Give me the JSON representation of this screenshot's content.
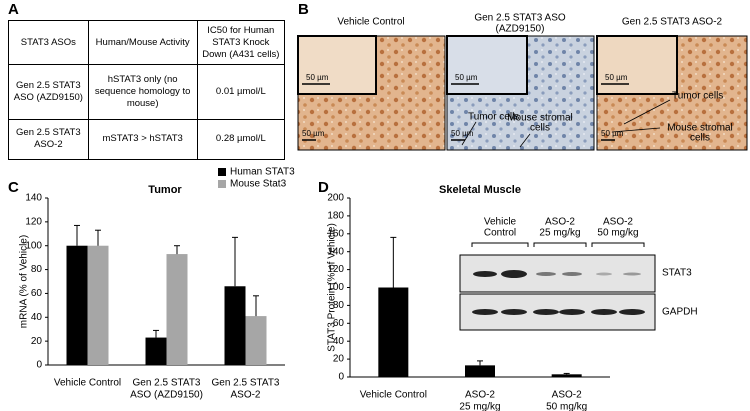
{
  "panels": [
    "A",
    "B",
    "C",
    "D"
  ],
  "table": {
    "header": [
      "STAT3 ASOs",
      "Human/Mouse Activity",
      "IC50 for Human STAT3 Knock Down (A431 cells)"
    ],
    "rows": [
      [
        "Gen 2.5 STAT3 ASO (AZD9150)",
        "hSTAT3 only (no sequence homology to mouse)",
        "0.01 µmol/L"
      ],
      [
        "Gen 2.5 STAT3 ASO-2",
        "mSTAT3 > hSTAT3",
        "0.28 µmol/L"
      ]
    ]
  },
  "micrographs": [
    {
      "title": [
        "Vehicle Control"
      ],
      "inset_scale": "50 µm",
      "scale": "50 µm"
    },
    {
      "title": [
        "Gen 2.5 STAT3 ASO",
        "(AZD9150)"
      ],
      "inset_scale": "50 µm",
      "scale": "50 µm",
      "tumor": "Tumor cells",
      "stroma": [
        "Mouse stromal",
        "cells"
      ]
    },
    {
      "title": [
        "Gen 2.5 STAT3 ASO-2"
      ],
      "inset_scale": "50 µm",
      "scale": "50 µm",
      "tumor": "Tumor cells",
      "stroma": [
        "Mouse stromal",
        "cells"
      ]
    }
  ],
  "blot": {
    "lanes": [
      [
        "Vehicle",
        "Control"
      ],
      [
        "ASO-2",
        "25 mg/kg"
      ],
      [
        "ASO-2",
        "50 mg/kg"
      ]
    ],
    "bands": [
      "STAT3",
      "GAPDH"
    ]
  },
  "chart_data": [
    {
      "type": "bar",
      "title": "Tumor",
      "ylabel": "mRNA (% of Vehicle)",
      "categories": [
        [
          "Vehicle Control"
        ],
        [
          "Gen 2.5 STAT3",
          "ASO (AZD9150)"
        ],
        [
          "Gen 2.5 STAT3",
          "ASO-2"
        ]
      ],
      "series": [
        {
          "name": "Human STAT3",
          "color": "#000000",
          "values": [
            100,
            23,
            66
          ],
          "errors": [
            17,
            6,
            41
          ]
        },
        {
          "name": "Mouse Stat3",
          "color": "#a6a6a6",
          "values": [
            100,
            93,
            41
          ],
          "errors": [
            13,
            7,
            17
          ]
        }
      ],
      "ylim": [
        0,
        140
      ],
      "yticks": [
        0,
        20,
        40,
        60,
        80,
        100,
        120,
        140
      ],
      "legend": "upper right"
    },
    {
      "type": "bar",
      "title": "Skeletal Muscle",
      "ylabel": "STAT3 Protein (% of Vehicle)",
      "categories": [
        [
          "Vehicle Control"
        ],
        [
          "ASO-2",
          "25 mg/kg"
        ],
        [
          "ASO-2",
          "50 mg/kg"
        ]
      ],
      "series": [
        {
          "color": "#000000",
          "values": [
            100,
            13,
            3
          ],
          "errors": [
            56,
            5,
            1
          ]
        }
      ],
      "ylim": [
        0,
        200
      ],
      "yticks": [
        0,
        20,
        40,
        60,
        80,
        100,
        120,
        140,
        160,
        180,
        200
      ]
    }
  ]
}
